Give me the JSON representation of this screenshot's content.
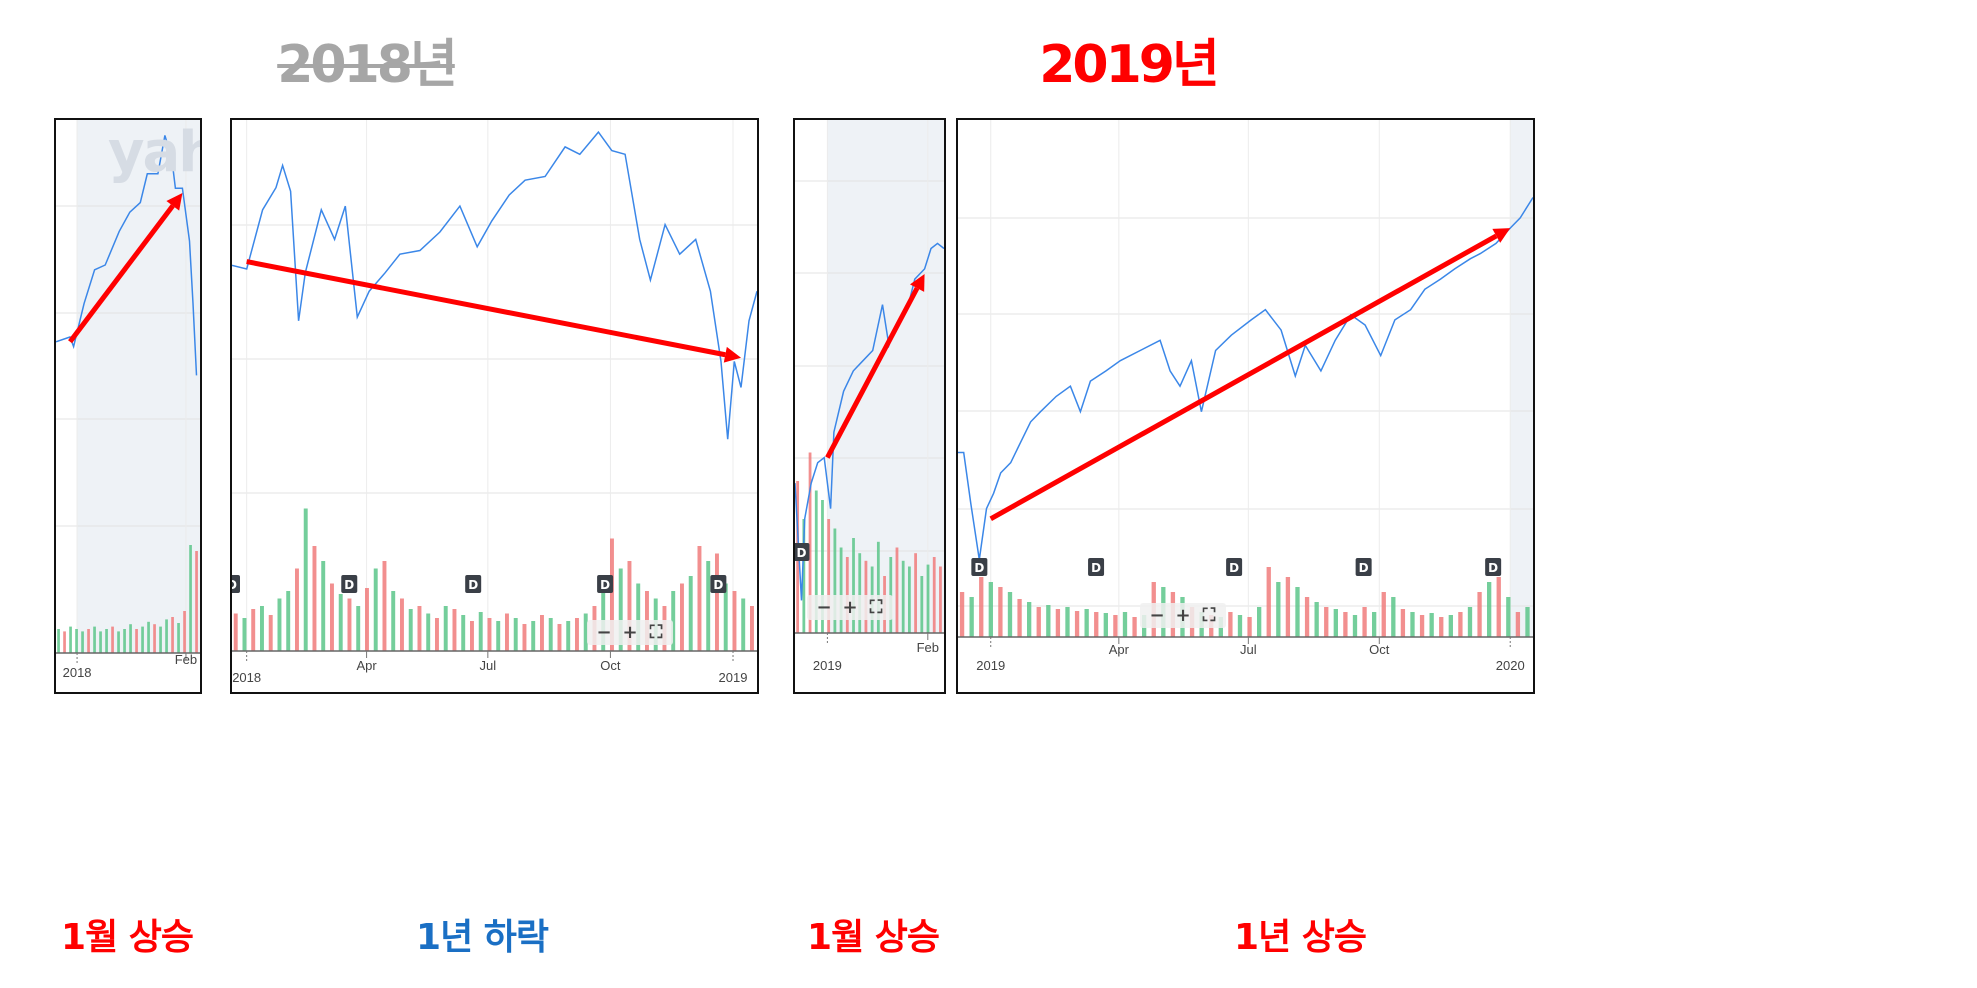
{
  "headings": {
    "year_2018": "2018년",
    "year_2019": "2019년",
    "color_2018": "#a6a6a6",
    "color_2019": "#ff0000"
  },
  "captions": [
    {
      "text": "1월 상승",
      "color": "#ff0000"
    },
    {
      "text": "1년 하락",
      "color": "#1a6fc4"
    },
    {
      "text": "1월 상승",
      "color": "#ff0000"
    },
    {
      "text": "1년 상승",
      "color": "#ff0000"
    }
  ],
  "watermark": "yaho",
  "zoom_controls": {
    "minus": "−",
    "plus": "+",
    "fullscreen": "⛶"
  },
  "colors": {
    "line": "#3b87e8",
    "arrow": "#ff0000",
    "volume_up": "#5cc58a",
    "volume_down": "#f07b7b",
    "shade": "#eef2f6",
    "badge": "#3a3f47"
  },
  "chart_data": [
    {
      "type": "line",
      "title": "",
      "xlabel": "",
      "ylabel": "",
      "xlim": [
        "2017-12-26",
        "2018-02-05"
      ],
      "shade_from": "2018-01-01",
      "ticks": [
        {
          "date": "2018-01-01",
          "label": "2018",
          "row": 2
        },
        {
          "date": "2018-02-01",
          "label": "Feb",
          "row": 1
        }
      ],
      "series": [
        {
          "dates": [
            "2017-12-26",
            "2017-12-30",
            "2017-12-31",
            "2018-01-03",
            "2018-01-06",
            "2018-01-09",
            "2018-01-13",
            "2018-01-16",
            "2018-01-19",
            "2018-01-21",
            "2018-01-24",
            "2018-01-26",
            "2018-01-28",
            "2018-01-29",
            "2018-01-31",
            "2018-02-02",
            "2018-02-03",
            "2018-02-04"
          ],
          "values": [
            54,
            55,
            53,
            62,
            69,
            70,
            77,
            81,
            83,
            89,
            89,
            97,
            92,
            86,
            86,
            75,
            62,
            47
          ]
        }
      ],
      "volume": [
        20,
        -18,
        22,
        20,
        18,
        -20,
        22,
        18,
        20,
        -22,
        18,
        20,
        24,
        -20,
        22,
        26,
        -24,
        22,
        28,
        -30,
        25,
        -35,
        90,
        -85
      ],
      "dividends": [],
      "arrow": {
        "from": {
          "date": "2017-12-30",
          "value": 54
        },
        "to": {
          "date": "2018-01-31",
          "value": 85
        }
      }
    },
    {
      "type": "line",
      "title": "",
      "xlabel": "",
      "ylabel": "",
      "xlim": [
        "2017-12-21",
        "2019-01-19"
      ],
      "ticks": [
        {
          "date": "2018-01-01",
          "label": "2018",
          "row": 2
        },
        {
          "date": "2018-04-01",
          "label": "Apr",
          "row": 1
        },
        {
          "date": "2018-07-01",
          "label": "Jul",
          "row": 1
        },
        {
          "date": "2018-10-01",
          "label": "Oct",
          "row": 1
        },
        {
          "date": "2019-01-01",
          "label": "2019",
          "row": 2
        }
      ],
      "series": [
        {
          "dates": [
            "2017-12-21",
            "2018-01-01",
            "2018-01-13",
            "2018-01-23",
            "2018-01-28",
            "2018-02-03",
            "2018-02-09",
            "2018-02-14",
            "2018-02-26",
            "2018-03-08",
            "2018-03-16",
            "2018-03-25",
            "2018-04-03",
            "2018-04-15",
            "2018-04-26",
            "2018-05-11",
            "2018-05-26",
            "2018-06-10",
            "2018-06-23",
            "2018-07-04",
            "2018-07-17",
            "2018-07-29",
            "2018-08-13",
            "2018-08-28",
            "2018-09-08",
            "2018-09-22",
            "2018-10-02",
            "2018-10-12",
            "2018-10-23",
            "2018-10-31",
            "2018-11-11",
            "2018-11-22",
            "2018-12-04",
            "2018-12-15",
            "2018-12-23",
            "2018-12-28",
            "2019-01-02",
            "2019-01-07",
            "2019-01-13",
            "2019-01-19"
          ],
          "values": [
            61,
            60,
            76,
            82,
            88,
            81,
            46,
            59,
            76,
            68,
            77,
            47,
            54,
            59,
            64,
            65,
            70,
            77,
            66,
            73,
            80,
            84,
            85,
            93,
            91,
            97,
            92,
            91,
            68,
            57,
            72,
            64,
            68,
            54,
            35,
            14,
            35,
            28,
            46,
            54
          ]
        }
      ],
      "volume": [
        -25,
        22,
        -28,
        30,
        -24,
        35,
        40,
        -55,
        95,
        -70,
        60,
        -45,
        38,
        -35,
        30,
        -42,
        55,
        -60,
        40,
        -35,
        28,
        -30,
        25,
        -22,
        30,
        -28,
        24,
        -20,
        26,
        -22,
        20,
        -25,
        22,
        -18,
        20,
        -24,
        22,
        -18,
        20,
        -22,
        25,
        -30,
        40,
        -75,
        55,
        -60,
        45,
        -40,
        35,
        -30,
        40,
        -45,
        50,
        -70,
        60,
        -65,
        45,
        -40,
        35,
        -30
      ],
      "dividends": [
        {
          "date": "2017-12-21",
          "label": "D"
        },
        {
          "date": "2018-03-19",
          "label": "D"
        },
        {
          "date": "2018-06-20",
          "label": "D"
        },
        {
          "date": "2018-09-27",
          "label": "D"
        },
        {
          "date": "2018-12-21",
          "label": "D"
        }
      ],
      "arrow": {
        "from": {
          "date": "2018-01-01",
          "value": 62
        },
        "to": {
          "date": "2019-01-07",
          "value": 36
        }
      }
    },
    {
      "type": "line",
      "title": "",
      "xlabel": "",
      "ylabel": "",
      "xlim": [
        "2018-12-22",
        "2019-02-06"
      ],
      "shade_from": "2019-01-01",
      "ticks": [
        {
          "date": "2019-01-01",
          "label": "2019",
          "row": 2
        },
        {
          "date": "2019-02-01",
          "label": "Feb",
          "row": 1
        }
      ],
      "series": [
        {
          "dates": [
            "2018-12-22",
            "2018-12-24",
            "2018-12-25",
            "2018-12-27",
            "2018-12-29",
            "2018-12-31",
            "2019-01-02",
            "2019-01-03",
            "2019-01-06",
            "2019-01-09",
            "2019-01-12",
            "2019-01-15",
            "2019-01-18",
            "2019-01-20",
            "2019-01-23",
            "2019-01-26",
            "2019-01-28",
            "2019-01-31",
            "2019-02-02",
            "2019-02-04",
            "2019-02-06"
          ],
          "values": [
            29,
            6,
            22,
            29,
            33,
            34,
            24,
            39,
            47,
            51,
            53,
            55,
            64,
            56,
            61,
            64,
            69,
            71,
            75,
            76,
            75
          ]
        }
      ],
      "volume": [
        -80,
        60,
        -95,
        75,
        70,
        -60,
        55,
        45,
        -40,
        50,
        42,
        -38,
        35,
        48,
        -30,
        40,
        -45,
        38,
        35,
        -42,
        30,
        36,
        -40,
        -35
      ],
      "dividends": [
        {
          "date": "2018-12-24",
          "label": "D"
        }
      ],
      "arrow": {
        "from": {
          "date": "2019-01-01",
          "value": 34
        },
        "to": {
          "date": "2019-01-31",
          "value": 70
        }
      }
    },
    {
      "type": "line",
      "title": "",
      "xlabel": "",
      "ylabel": "",
      "xlim": [
        "2018-12-09",
        "2020-01-17"
      ],
      "shade_from": "2020-01-01",
      "ticks": [
        {
          "date": "2019-01-01",
          "label": "2019",
          "row": 2
        },
        {
          "date": "2019-04-01",
          "label": "Apr",
          "row": 1
        },
        {
          "date": "2019-07-01",
          "label": "Jul",
          "row": 1
        },
        {
          "date": "2019-10-01",
          "label": "Oct",
          "row": 1
        },
        {
          "date": "2020-01-01",
          "label": "2020",
          "row": 2
        }
      ],
      "series": [
        {
          "dates": [
            "2018-12-09",
            "2018-12-13",
            "2018-12-18",
            "2018-12-24",
            "2018-12-29",
            "2019-01-03",
            "2019-01-08",
            "2019-01-15",
            "2019-01-22",
            "2019-01-29",
            "2019-02-05",
            "2019-02-16",
            "2019-02-26",
            "2019-03-05",
            "2019-03-12",
            "2019-03-23",
            "2019-04-02",
            "2019-04-16",
            "2019-04-30",
            "2019-05-07",
            "2019-05-14",
            "2019-05-22",
            "2019-05-29",
            "2019-06-08",
            "2019-06-19",
            "2019-07-03",
            "2019-07-13",
            "2019-07-24",
            "2019-08-03",
            "2019-08-10",
            "2019-08-21",
            "2019-08-31",
            "2019-09-11",
            "2019-09-21",
            "2019-10-02",
            "2019-10-12",
            "2019-10-23",
            "2019-11-02",
            "2019-11-13",
            "2019-11-23",
            "2019-12-04",
            "2019-12-11",
            "2019-12-22",
            "2020-01-01",
            "2020-01-08",
            "2020-01-17"
          ],
          "values": [
            35,
            35,
            25,
            14,
            24,
            27,
            31,
            33,
            37,
            41,
            43,
            46,
            48,
            43,
            49,
            51,
            53,
            55,
            57,
            51,
            48,
            53,
            43,
            55,
            58,
            61,
            63,
            59,
            50,
            56,
            51,
            57,
            62,
            60,
            54,
            61,
            63,
            67,
            69,
            71,
            73,
            74,
            76,
            79,
            81,
            85
          ]
        }
      ],
      "volume": [
        -45,
        40,
        -60,
        55,
        -50,
        45,
        -38,
        35,
        -30,
        32,
        -28,
        30,
        -26,
        28,
        -25,
        24,
        -22,
        25,
        -20,
        22,
        -55,
        50,
        -45,
        40,
        -30,
        25,
        -22,
        20,
        -25,
        22,
        -20,
        30,
        -70,
        55,
        -60,
        50,
        -40,
        35,
        -30,
        28,
        -25,
        22,
        -30,
        25,
        -45,
        40,
        -28,
        25,
        -22,
        24,
        -20,
        22,
        -25,
        30,
        -45,
        55,
        -60,
        40,
        -25,
        30
      ],
      "dividends": [
        {
          "date": "2018-12-24",
          "label": "D"
        },
        {
          "date": "2019-03-16",
          "label": "D"
        },
        {
          "date": "2019-06-21",
          "label": "D"
        },
        {
          "date": "2019-09-20",
          "label": "D"
        },
        {
          "date": "2019-12-20",
          "label": "D"
        }
      ],
      "arrow": {
        "from": {
          "date": "2019-01-01",
          "value": 22
        },
        "to": {
          "date": "2020-01-01",
          "value": 79
        }
      }
    }
  ]
}
